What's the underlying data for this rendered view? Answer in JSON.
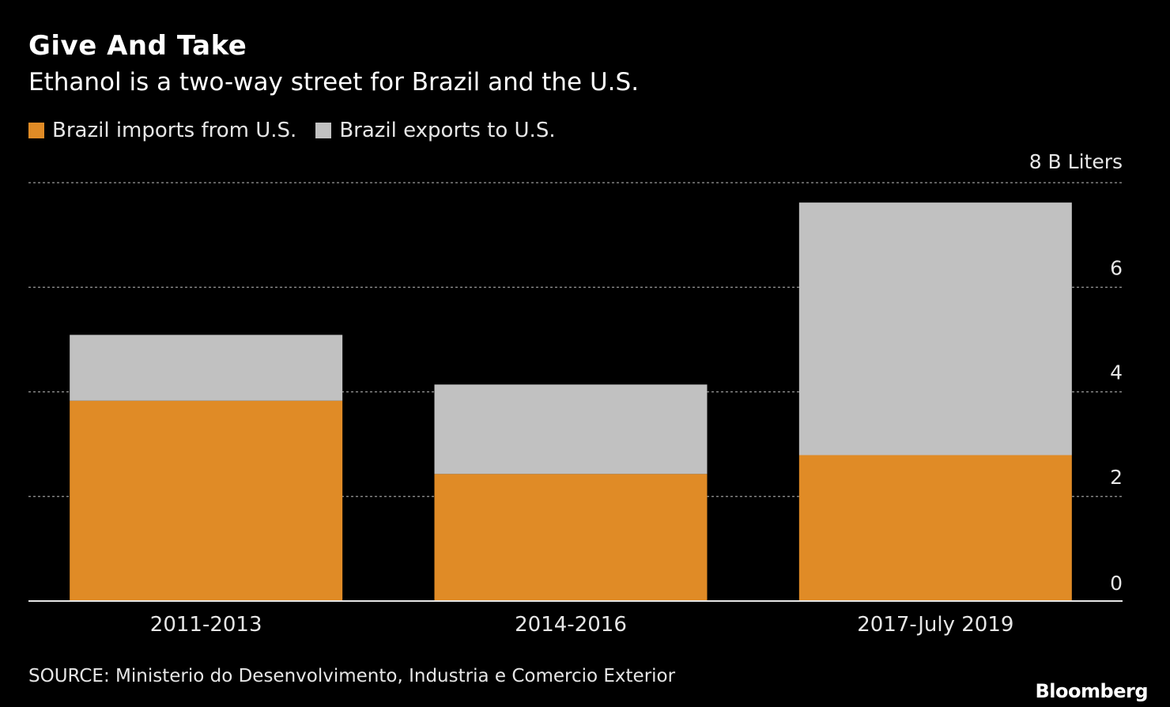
{
  "header": {
    "title": "Give And Take",
    "subtitle": "Ethanol is a two-way street for Brazil and the U.S."
  },
  "legend": [
    {
      "label": "Brazil imports from U.S.",
      "color": "#e08b26"
    },
    {
      "label": "Brazil exports to U.S.",
      "color": "#c1c1c1"
    }
  ],
  "footer": {
    "source": "SOURCE: Ministerio do Desenvolvimento, Industria e Comercio Exterior",
    "brand": "Bloomberg"
  },
  "chart_data": {
    "type": "bar",
    "stacked": true,
    "title": "Give And Take",
    "subtitle": "Ethanol is a two-way street for Brazil and the U.S.",
    "categories": [
      "2011-2013",
      "2014-2016",
      "2017-July 2019"
    ],
    "series": [
      {
        "name": "Brazil imports from U.S.",
        "color": "#e08b26",
        "values": [
          3.83,
          2.43,
          2.79
        ]
      },
      {
        "name": "Brazil exports to U.S.",
        "color": "#c1c1c1",
        "values": [
          1.26,
          1.71,
          4.83
        ]
      }
    ],
    "ylim": [
      0,
      8
    ],
    "yticks": [
      0,
      2,
      4,
      6,
      8
    ],
    "ytick_labels": [
      "0",
      "2",
      "4",
      "6",
      "8 B Liters"
    ],
    "yaxis_position": "right",
    "grid": true,
    "grid_style": "dotted",
    "xlabel": "",
    "ylabel": "B Liters"
  }
}
